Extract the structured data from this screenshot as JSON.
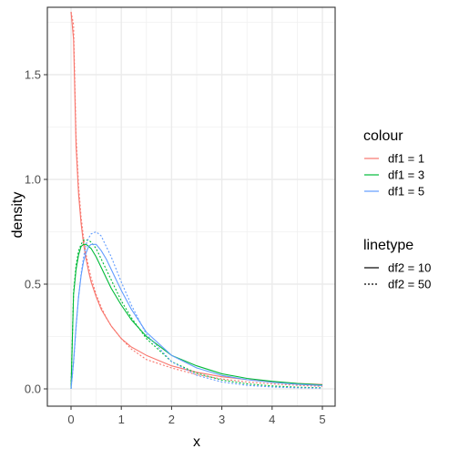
{
  "chart_data": {
    "type": "line",
    "xlabel": "x",
    "ylabel": "density",
    "xlim": [
      0,
      5
    ],
    "ylim": [
      0,
      1.8
    ],
    "x_ticks": [
      "0",
      "1",
      "2",
      "3",
      "4",
      "5"
    ],
    "y_ticks": [
      "0.0",
      "0.5",
      "1.0",
      "1.5"
    ],
    "grid": true,
    "legend_placement": "right",
    "legends": [
      {
        "title": "colour",
        "items": [
          {
            "label": "df1 = 1",
            "color": "#F8766D"
          },
          {
            "label": "df1 = 3",
            "color": "#00BA38"
          },
          {
            "label": "df1 = 5",
            "color": "#619CFF"
          }
        ]
      },
      {
        "title": "linetype",
        "items": [
          {
            "label": "df2 = 10",
            "linetype": "solid"
          },
          {
            "label": "df2 = 50",
            "linetype": "dotted"
          }
        ]
      }
    ],
    "x": [
      0,
      0.05,
      0.1,
      0.15,
      0.2,
      0.25,
      0.3,
      0.35,
      0.4,
      0.5,
      0.6,
      0.7,
      0.8,
      1.0,
      1.2,
      1.5,
      2.0,
      2.5,
      3.0,
      3.5,
      4.0,
      4.5,
      5.0
    ],
    "series": [
      {
        "color_group": "df1 = 1",
        "linetype_group": "df2 = 10",
        "color": "#F8766D",
        "linetype": "solid",
        "values": [
          1.8,
          1.67,
          1.16,
          0.93,
          0.79,
          0.69,
          0.62,
          0.56,
          0.51,
          0.44,
          0.38,
          0.34,
          0.3,
          0.24,
          0.2,
          0.16,
          0.11,
          0.079,
          0.058,
          0.044,
          0.034,
          0.026,
          0.021
        ]
      },
      {
        "color_group": "df1 = 1",
        "linetype_group": "df2 = 50",
        "color": "#F8766D",
        "linetype": "dotted",
        "values": [
          1.8,
          1.74,
          1.21,
          0.97,
          0.82,
          0.72,
          0.64,
          0.58,
          0.53,
          0.45,
          0.39,
          0.34,
          0.3,
          0.24,
          0.19,
          0.14,
          0.1,
          0.068,
          0.047,
          0.033,
          0.024,
          0.017,
          0.012
        ]
      },
      {
        "color_group": "df1 = 3",
        "linetype_group": "df2 = 10",
        "color": "#00BA38",
        "linetype": "solid",
        "values": [
          0,
          0.45,
          0.57,
          0.64,
          0.68,
          0.69,
          0.69,
          0.68,
          0.67,
          0.63,
          0.58,
          0.53,
          0.48,
          0.4,
          0.33,
          0.25,
          0.16,
          0.11,
          0.072,
          0.05,
          0.036,
          0.026,
          0.019
        ]
      },
      {
        "color_group": "df1 = 3",
        "linetype_group": "df2 = 50",
        "color": "#00BA38",
        "linetype": "dotted",
        "values": [
          0,
          0.46,
          0.59,
          0.66,
          0.69,
          0.71,
          0.71,
          0.71,
          0.7,
          0.67,
          0.62,
          0.57,
          0.52,
          0.42,
          0.34,
          0.24,
          0.13,
          0.075,
          0.042,
          0.024,
          0.014,
          0.008,
          0.005
        ]
      },
      {
        "color_group": "df1 = 5",
        "linetype_group": "df2 = 10",
        "color": "#619CFF",
        "linetype": "solid",
        "values": [
          0,
          0.13,
          0.3,
          0.44,
          0.54,
          0.61,
          0.65,
          0.68,
          0.69,
          0.69,
          0.66,
          0.62,
          0.57,
          0.47,
          0.38,
          0.27,
          0.16,
          0.1,
          0.064,
          0.044,
          0.031,
          0.022,
          0.016
        ]
      },
      {
        "color_group": "df1 = 5",
        "linetype_group": "df2 = 50",
        "color": "#619CFF",
        "linetype": "dotted",
        "values": [
          0,
          0.12,
          0.29,
          0.44,
          0.55,
          0.63,
          0.69,
          0.72,
          0.74,
          0.75,
          0.73,
          0.68,
          0.63,
          0.51,
          0.4,
          0.26,
          0.13,
          0.065,
          0.033,
          0.017,
          0.009,
          0.005,
          0.003
        ]
      }
    ]
  }
}
